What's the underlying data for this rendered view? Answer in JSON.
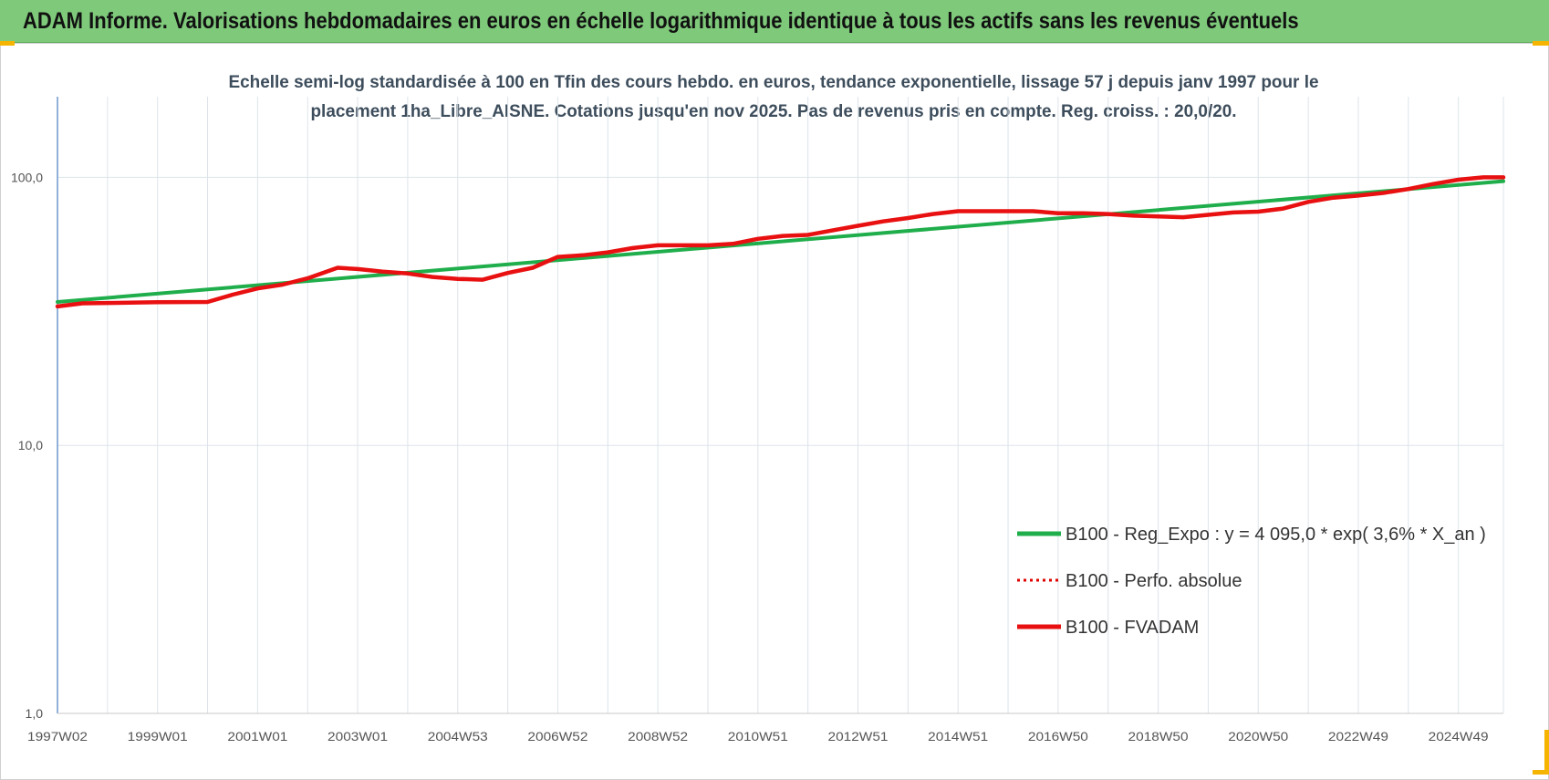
{
  "header": {
    "title": "ADAM Informe. Valorisations hebdomadaires en euros en échelle logarithmique identique à tous les actifs sans les revenus éventuels"
  },
  "chart_data": {
    "type": "line",
    "title_line1": "Echelle semi-log standardisée à 100 en Tfin des cours hebdo. en euros, tendance exponentielle, lissage 57 j depuis janv 1997 pour le",
    "title_line2": "placement 1ha_Libre_AISNE. Cotations jusqu'en nov 2025. Pas de revenus pris en compte. Reg. croiss. : 20,0/20.",
    "y_scale": "log",
    "ylim": [
      1,
      200
    ],
    "y_ticks": [
      {
        "value": 1,
        "label": "1,0"
      },
      {
        "value": 10,
        "label": "10,0"
      },
      {
        "value": 100,
        "label": "100,0"
      }
    ],
    "x_tick_labels": [
      "1997W02",
      "1999W01",
      "2001W01",
      "2003W01",
      "2004W53",
      "2006W52",
      "2008W52",
      "2010W51",
      "2012W51",
      "2014W51",
      "2016W50",
      "2018W50",
      "2020W50",
      "2022W49",
      "2024W49"
    ],
    "x_tick_years": [
      1997,
      1999,
      2001,
      2003,
      2005,
      2007,
      2009,
      2011,
      2013,
      2015,
      2017,
      2019,
      2021,
      2023,
      2025
    ],
    "xlim": [
      1997.0,
      2025.9
    ],
    "grid": true,
    "legend_position": "bottom-right",
    "series": [
      {
        "name": "B100 - Reg_Expo : y = 4 095,0 * exp( 3,6% *  X_an )",
        "color": "#1fae4b",
        "style": "solid",
        "x": [
          1997.0,
          2025.9
        ],
        "y": [
          34.3,
          96.8
        ]
      },
      {
        "name": "B100 - Perfo. absolue",
        "color": "#e00000",
        "style": "dotted",
        "x": [],
        "y": []
      },
      {
        "name": "B100 - FVADAM",
        "color": "#e81010",
        "style": "solid",
        "x": [
          1997.0,
          1997.5,
          1998.0,
          1999.0,
          2000.0,
          2000.5,
          2001.0,
          2001.5,
          2002.0,
          2002.6,
          2003.0,
          2003.5,
          2004.0,
          2004.5,
          2005.0,
          2005.5,
          2006.0,
          2006.5,
          2007.0,
          2007.5,
          2008.0,
          2008.5,
          2009.0,
          2009.5,
          2010.0,
          2010.5,
          2011.0,
          2011.5,
          2012.0,
          2012.5,
          2013.0,
          2013.5,
          2014.0,
          2014.5,
          2015.0,
          2015.5,
          2016.0,
          2016.5,
          2017.0,
          2017.5,
          2018.0,
          2018.5,
          2019.0,
          2019.5,
          2020.0,
          2020.5,
          2021.0,
          2021.5,
          2022.0,
          2022.5,
          2023.0,
          2023.5,
          2024.0,
          2024.5,
          2025.0,
          2025.5,
          2025.9
        ],
        "y": [
          33.0,
          33.9,
          34.0,
          34.2,
          34.3,
          36.5,
          38.5,
          39.8,
          42.0,
          46.0,
          45.5,
          44.5,
          43.8,
          42.5,
          41.8,
          41.5,
          44.0,
          46.0,
          50.5,
          51.2,
          52.5,
          54.5,
          55.8,
          55.8,
          55.8,
          56.5,
          59.0,
          60.5,
          61.0,
          63.5,
          66.0,
          68.5,
          70.5,
          73.0,
          74.8,
          74.8,
          74.8,
          74.8,
          73.5,
          73.5,
          73.0,
          72.0,
          71.5,
          71.0,
          72.5,
          74.0,
          74.5,
          76.5,
          81.0,
          84.0,
          85.5,
          87.5,
          90.5,
          94.5,
          98.0,
          100.0,
          100.0
        ]
      }
    ]
  }
}
